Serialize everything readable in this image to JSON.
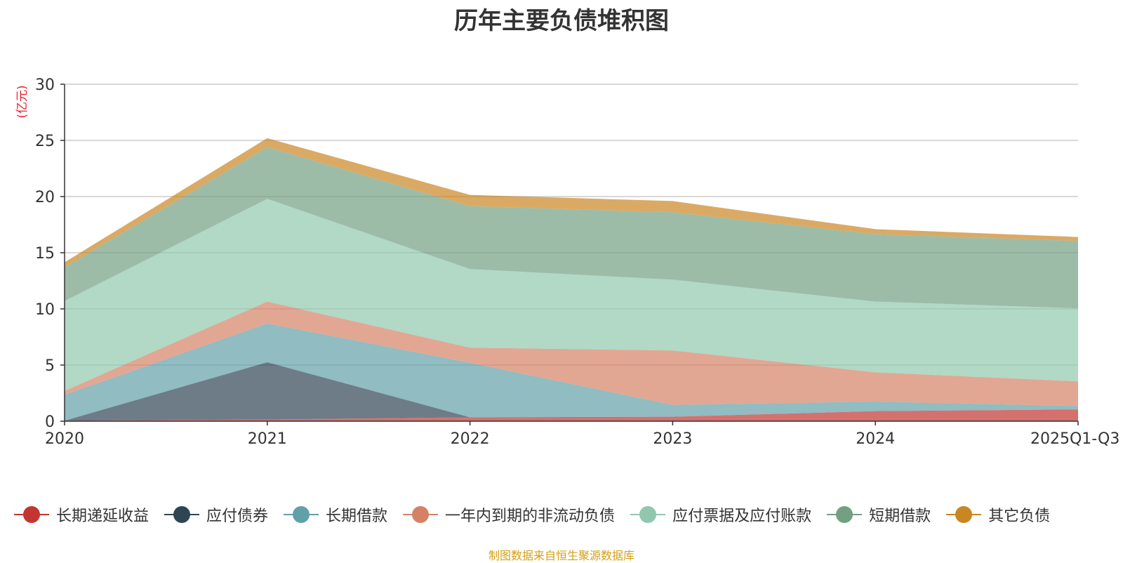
{
  "chart_data": {
    "type": "area",
    "stacked": true,
    "title": "历年主要负债堆积图",
    "ylabel": "(亿元)",
    "xlabel": "",
    "ylim": [
      0,
      30
    ],
    "yticks": [
      0,
      5,
      10,
      15,
      20,
      25,
      30
    ],
    "categories": [
      "2020",
      "2021",
      "2022",
      "2023",
      "2024",
      "2025Q1-Q3"
    ],
    "grid": true,
    "legend_position": "bottom",
    "source": "制图数据来自恒生聚源数据库",
    "series": [
      {
        "name": "长期递延收益",
        "color": "#c23531",
        "values": [
          0.05,
          0.15,
          0.35,
          0.4,
          0.9,
          1.05
        ]
      },
      {
        "name": "应付债券",
        "color": "#2f4554",
        "values": [
          0.0,
          5.1,
          0.0,
          0.0,
          0.0,
          0.0
        ]
      },
      {
        "name": "长期借款",
        "color": "#61a0a8",
        "values": [
          2.3,
          3.45,
          4.85,
          1.05,
          0.85,
          0.3
        ]
      },
      {
        "name": "一年内到期的非流动负债",
        "color": "#d48265",
        "values": [
          0.35,
          1.95,
          1.35,
          4.85,
          2.6,
          2.2
        ]
      },
      {
        "name": "应付票据及应付账款",
        "color": "#91c7ae",
        "values": [
          8.0,
          9.15,
          7.0,
          6.3,
          6.3,
          6.5
        ]
      },
      {
        "name": "短期借款",
        "color": "#749f83",
        "values": [
          3.0,
          4.6,
          5.6,
          6.0,
          6.0,
          6.0
        ]
      },
      {
        "name": "其它负债",
        "color": "#ca8622",
        "values": [
          0.45,
          0.8,
          1.0,
          1.0,
          0.45,
          0.35
        ]
      }
    ]
  }
}
